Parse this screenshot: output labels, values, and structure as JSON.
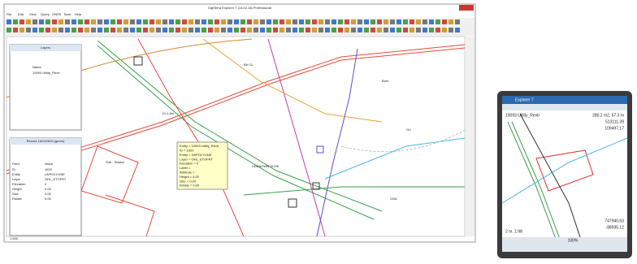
{
  "window": {
    "title": "DigiTerra Explorer 7 (14.02.18) Professional",
    "menu": [
      "File",
      "Edit",
      "View",
      "Query",
      "GNSS",
      "Tools",
      "Help"
    ]
  },
  "layers": {
    "title": "Layers",
    "column": "Name",
    "items": [
      "10093 Utility_Revb"
    ]
  },
  "record": {
    "title": "Record 1620/2625 (geom)",
    "columns": [
      "Field",
      "Value"
    ],
    "rows": [
      [
        "ID",
        "1620"
      ],
      [
        "Entity",
        "LWPOLYLINE"
      ],
      [
        "Layer",
        "OHL_ETOFRT"
      ],
      [
        "Elevation",
        "0"
      ],
      [
        "Height",
        "0.00"
      ],
      [
        "Size",
        "0.00"
      ],
      [
        "Rotate",
        "0.00"
      ]
    ]
  },
  "tooltip": [
    "Entity = 10093 Utility_Revb",
    "ID = 1620",
    "Entity = LWPOLYLINE",
    "Layer = OHL_ETOFRT",
    "Elevation = 0",
    "Label =",
    "Attribute =",
    "Height = 0.00",
    "Size = 0.00",
    "Rotate = 0.00"
  ],
  "map_labels": [
    "Sub - Station",
    "Electric Sub - Station",
    "UNKNOWN SCHK",
    "BH CL",
    "Bore",
    "GU",
    "OSA",
    "D=1.8m"
  ],
  "status": "1:500",
  "mobile": {
    "title": "Explorer 7",
    "layer": "10093 Utility_Revb",
    "measure": "280.2 m2, 67.3 m",
    "coords_top": [
      "513111.39",
      "109497.17"
    ],
    "coords_bottom": [
      "747940.63",
      "-98935.12"
    ],
    "scale": "2 m, 1:98",
    "zoom": "100%"
  }
}
